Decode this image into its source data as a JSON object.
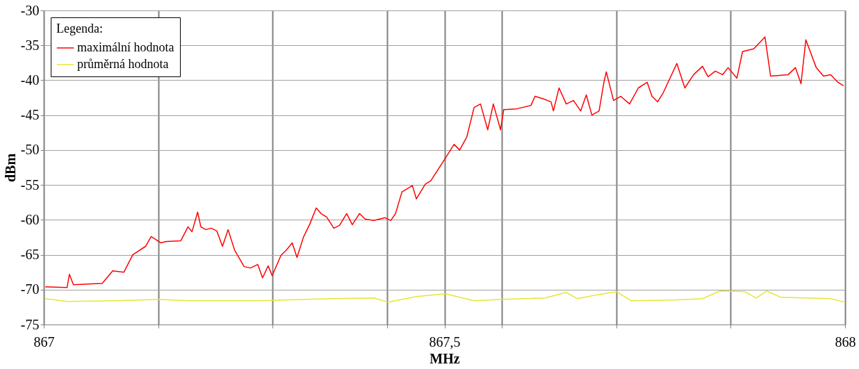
{
  "chart_data": {
    "type": "line",
    "xlabel": "MHz",
    "ylabel": "dBm",
    "legend_title": "Legenda:",
    "legend": "top left",
    "grid": true,
    "line_style": "solid",
    "marker": "none",
    "xlim": [
      867,
      868
    ],
    "ylim": [
      -75,
      -30
    ],
    "xticks": [
      867,
      {
        "value": 867.142857,
        "label": null
      },
      {
        "value": 867.285714,
        "label": null
      },
      {
        "value": 867.428571,
        "label": null
      },
      {
        "value": 867.5,
        "label": "867,5"
      },
      {
        "value": 867.571429,
        "label": null
      },
      {
        "value": 867.714286,
        "label": null
      },
      {
        "value": 867.857143,
        "label": null
      },
      868
    ],
    "yticks": [
      -75,
      -70,
      -65,
      -60,
      -55,
      -50,
      -45,
      -40,
      -35,
      -30
    ],
    "series": [
      {
        "name": "maximální hodnota",
        "color": "#ff0000",
        "x": [
          867.002,
          867.029,
          867.032,
          867.037,
          867.073,
          867.086,
          867.1,
          867.111,
          867.127,
          867.134,
          867.146,
          867.153,
          867.171,
          867.18,
          867.185,
          867.192,
          867.196,
          867.202,
          867.209,
          867.216,
          867.223,
          867.23,
          867.238,
          867.25,
          867.258,
          867.267,
          867.273,
          867.28,
          867.285,
          867.296,
          867.303,
          867.31,
          867.316,
          867.324,
          867.332,
          867.34,
          867.346,
          867.353,
          867.362,
          867.369,
          867.378,
          867.385,
          867.394,
          867.401,
          867.412,
          867.426,
          867.433,
          867.439,
          867.447,
          867.46,
          867.465,
          867.476,
          867.483,
          867.501,
          867.512,
          867.519,
          867.528,
          867.537,
          867.545,
          867.554,
          867.561,
          867.57,
          867.574,
          867.59,
          867.608,
          867.613,
          867.624,
          867.633,
          867.636,
          867.643,
          867.652,
          867.661,
          867.67,
          867.677,
          867.684,
          867.693,
          867.699,
          867.702,
          867.711,
          867.72,
          867.731,
          867.742,
          867.753,
          867.759,
          867.766,
          867.773,
          867.79,
          867.8,
          867.811,
          867.822,
          867.829,
          867.838,
          867.847,
          867.854,
          867.865,
          867.872,
          867.886,
          867.9,
          867.907,
          867.929,
          867.938,
          867.945,
          867.951,
          867.964,
          867.973,
          867.982,
          867.991,
          867.998
        ],
        "values": [
          -69.6,
          -69.7,
          -67.8,
          -69.3,
          -69.1,
          -67.3,
          -67.5,
          -65.0,
          -63.8,
          -62.4,
          -63.3,
          -63.1,
          -63.0,
          -61.0,
          -61.7,
          -58.9,
          -61.0,
          -61.4,
          -61.2,
          -61.6,
          -63.8,
          -61.4,
          -64.3,
          -66.7,
          -66.9,
          -66.4,
          -68.3,
          -66.6,
          -68.0,
          -65.1,
          -64.3,
          -63.3,
          -65.4,
          -62.5,
          -60.6,
          -58.3,
          -59.1,
          -59.6,
          -61.2,
          -60.8,
          -59.1,
          -60.7,
          -59.1,
          -59.9,
          -60.1,
          -59.7,
          -60.1,
          -59.1,
          -56.0,
          -55.1,
          -57.0,
          -54.9,
          -54.4,
          -51.2,
          -49.2,
          -50.0,
          -48.1,
          -43.9,
          -43.4,
          -47.1,
          -43.4,
          -47.1,
          -44.2,
          -44.1,
          -43.6,
          -42.3,
          -42.7,
          -43.1,
          -44.4,
          -41.1,
          -43.4,
          -42.9,
          -44.4,
          -42.1,
          -45.0,
          -44.4,
          -40.3,
          -38.8,
          -42.9,
          -42.3,
          -43.4,
          -41.1,
          -40.3,
          -42.3,
          -43.1,
          -41.8,
          -37.6,
          -41.1,
          -39.2,
          -38.0,
          -39.5,
          -38.7,
          -39.2,
          -38.2,
          -39.7,
          -35.9,
          -35.5,
          -33.8,
          -39.4,
          -39.2,
          -38.2,
          -40.5,
          -34.2,
          -38.2,
          -39.4,
          -39.2,
          -40.3,
          -40.8
        ]
      },
      {
        "name": "průměrná hodnota",
        "color": "#e6e632",
        "x": [
          867.002,
          867.029,
          867.091,
          867.144,
          867.18,
          867.269,
          867.358,
          867.412,
          867.43,
          867.465,
          867.501,
          867.537,
          867.572,
          867.626,
          867.652,
          867.666,
          867.688,
          867.715,
          867.733,
          867.786,
          867.822,
          867.844,
          867.875,
          867.889,
          867.902,
          867.92,
          867.982,
          868.0
        ],
        "values": [
          -71.3,
          -71.7,
          -71.6,
          -71.4,
          -71.6,
          -71.6,
          -71.3,
          -71.2,
          -71.8,
          -71.0,
          -70.6,
          -71.6,
          -71.4,
          -71.2,
          -70.4,
          -71.3,
          -70.8,
          -70.3,
          -71.6,
          -71.5,
          -71.3,
          -70.2,
          -70.3,
          -71.2,
          -70.2,
          -71.1,
          -71.3,
          -71.8
        ]
      }
    ]
  }
}
